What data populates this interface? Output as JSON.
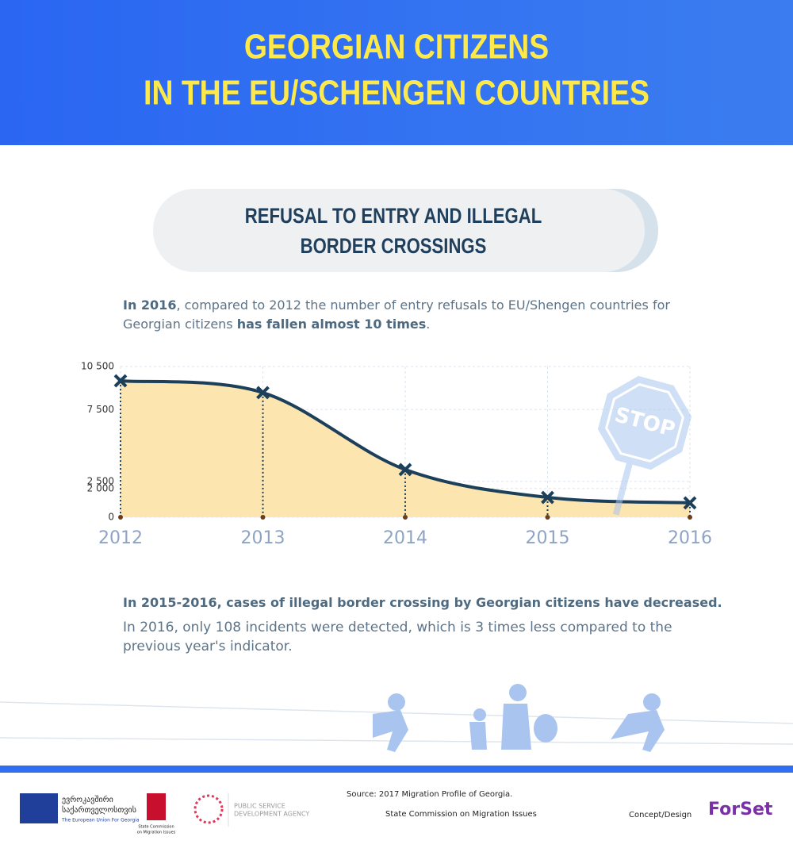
{
  "header": {
    "title_lines": [
      "GEORGIAN CITIZENS",
      "IN THE EU/SCHENGEN COUNTRIES"
    ]
  },
  "section_title_lines": [
    "REFUSAL TO ENTRY AND ILLEGAL",
    "BORDER CROSSINGS"
  ],
  "intro": [
    "In 2016",
    ", compared to 2012 the number of entry refusals to EU/Shengen countries for Georgian citizens ",
    "has fallen almost 10 times",
    "."
  ],
  "chart_data": {
    "type": "line",
    "categories": [
      "2012",
      "2013",
      "2014",
      "2015",
      "2016"
    ],
    "values": [
      9500,
      8680,
      3320,
      1380,
      1000
    ],
    "color": "#1c3f5a",
    "fill": "#fde5b0",
    "ylim": [
      0,
      10500
    ],
    "yticks": [
      0,
      {
        "value": 2500,
        "label": "2 500"
      },
      {
        "value": 2000,
        "label": "2 000"
      },
      {
        "value": 7500,
        "label": "7 500"
      },
      {
        "value": 10500,
        "label": "10 500"
      }
    ],
    "grid": true,
    "annotation": "STOP"
  },
  "crossing_heading": "In 2015-2016, cases of illegal border crossing by Georgian citizens have decreased.",
  "crossing_text": "In 2016, only 108 incidents were detected, which is 3 times less compared to the previous year's indicator.",
  "footer": {
    "eu_lines": [
      "ევროკავშირი",
      "საქართველოსთვის"
    ],
    "eu_english": "The European Union For Georgia",
    "commission_logo": [
      "State Commission",
      "on Migration Issues"
    ],
    "agency_lines": [
      "PUBLIC SERVICE",
      "DEVELOPMENT AGENCY"
    ],
    "source": "Source:  2017 Migration Profile of Georgia.",
    "source_org": "State Commission on Migration Issues",
    "concept": "Concept/Design",
    "brand": "ForSet"
  }
}
